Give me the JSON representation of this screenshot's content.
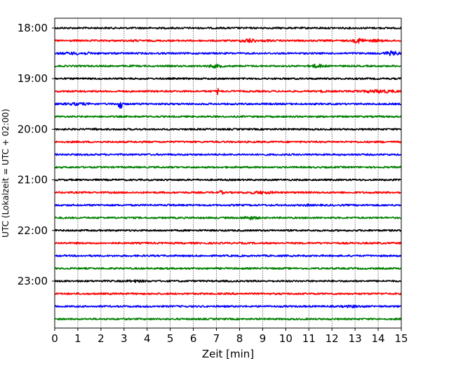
{
  "chart_data": {
    "type": "line",
    "title": "",
    "xlabel": "Zeit  [min]",
    "ylabel": "UTC (Lokalzeit = UTC + 02:00)",
    "xlim": [
      0,
      15
    ],
    "x_ticks": [
      0,
      1,
      2,
      3,
      4,
      5,
      6,
      7,
      8,
      9,
      10,
      11,
      12,
      13,
      14,
      15
    ],
    "x_grid": true,
    "y_ticks": [
      "18:00",
      "19:00",
      "20:00",
      "21:00",
      "22:00",
      "23:00"
    ],
    "trace_start_hour": 18,
    "trace_interval_minutes": 15,
    "trace_count": 24,
    "trace_colors": [
      "#000000",
      "#ff0000",
      "#0000ff",
      "#008000"
    ],
    "events": [
      {
        "trace": 1,
        "minute_from": 3.0,
        "minute_to": 3.8,
        "level": 1.5
      },
      {
        "trace": 1,
        "minute_from": 8.0,
        "minute_to": 8.8,
        "level": 3.0
      },
      {
        "trace": 1,
        "minute_from": 8.8,
        "minute_to": 9.6,
        "level": 1.6
      },
      {
        "trace": 1,
        "minute_from": 12.9,
        "minute_to": 13.5,
        "level": 3.5
      },
      {
        "trace": 1,
        "minute_from": 13.5,
        "minute_to": 14.3,
        "level": 2.0
      },
      {
        "trace": 2,
        "minute_from": 0.0,
        "minute_to": 2.0,
        "level": 2.0
      },
      {
        "trace": 2,
        "minute_from": 14.2,
        "minute_to": 15.0,
        "level": 3.0
      },
      {
        "trace": 3,
        "minute_from": 6.5,
        "minute_to": 7.4,
        "level": 2.4
      },
      {
        "trace": 3,
        "minute_from": 10.9,
        "minute_to": 11.8,
        "level": 2.6
      },
      {
        "trace": 5,
        "minute_from": 7.0,
        "minute_to": 7.1,
        "level": 5.0
      },
      {
        "trace": 5,
        "minute_from": 11.2,
        "minute_to": 12.0,
        "level": 1.6
      },
      {
        "trace": 5,
        "minute_from": 13.0,
        "minute_to": 13.2,
        "level": 3.0
      },
      {
        "trace": 5,
        "minute_from": 13.2,
        "minute_to": 15.0,
        "level": 2.4
      },
      {
        "trace": 6,
        "minute_from": 0.2,
        "minute_to": 1.8,
        "level": 2.0
      },
      {
        "trace": 6,
        "minute_from": 2.75,
        "minute_to": 2.9,
        "level": 12.0
      },
      {
        "trace": 8,
        "minute_from": 1.7,
        "minute_to": 1.85,
        "level": 2.0
      },
      {
        "trace": 9,
        "minute_from": 14.0,
        "minute_to": 14.3,
        "level": 1.4
      },
      {
        "trace": 13,
        "minute_from": 7.1,
        "minute_to": 7.3,
        "level": 3.0
      },
      {
        "trace": 13,
        "minute_from": 8.0,
        "minute_to": 9.8,
        "level": 2.0
      },
      {
        "trace": 14,
        "minute_from": 4.8,
        "minute_to": 5.1,
        "level": 1.8
      },
      {
        "trace": 14,
        "minute_from": 10.7,
        "minute_to": 11.1,
        "level": 1.8
      },
      {
        "trace": 15,
        "minute_from": 8.0,
        "minute_to": 8.9,
        "level": 2.4
      },
      {
        "trace": 20,
        "minute_from": 2.8,
        "minute_to": 4.2,
        "level": 1.8
      },
      {
        "trace": 21,
        "minute_from": 2.9,
        "minute_to": 3.0,
        "level": 1.2
      },
      {
        "trace": 22,
        "minute_from": 12.2,
        "minute_to": 13.6,
        "level": 1.8
      }
    ]
  }
}
